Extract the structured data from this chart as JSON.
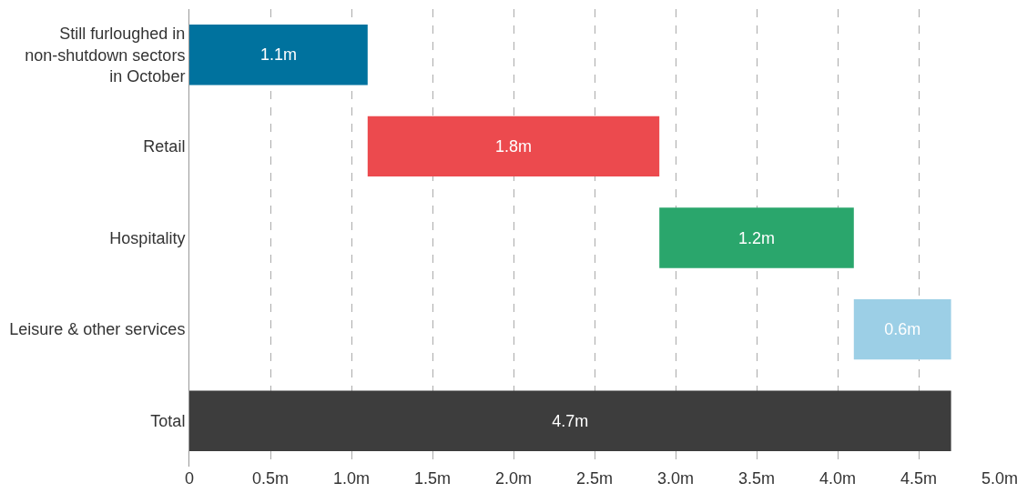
{
  "chart_data": {
    "type": "bar",
    "orientation": "horizontal",
    "categories": [
      "Still furloughed in non-shutdown sectors in October",
      "Retail",
      "Hospitality",
      "Leisure & other services",
      "Total"
    ],
    "values": [
      1.1,
      1.8,
      1.2,
      0.6,
      4.7
    ],
    "base": [
      0,
      1.1,
      2.9,
      4.1,
      0
    ],
    "colors": [
      "#00729e",
      "#ec4a4e",
      "#2aa66c",
      "#9ccfe6",
      "#3d3d3d"
    ],
    "value_labels": [
      "1.1m",
      "1.8m",
      "1.2m",
      "0.6m",
      "4.7m"
    ],
    "xlim": [
      0,
      5.0
    ],
    "xticks": [
      0,
      {
        "value": 0.5,
        "label": "0.5m"
      },
      {
        "value": 1.0,
        "label": "1.0m"
      },
      {
        "value": 1.5,
        "label": "1.5m"
      },
      {
        "value": 2.0,
        "label": "2.0m"
      },
      {
        "value": 2.5,
        "label": "2.5m"
      },
      {
        "value": 3.0,
        "label": "3.0m"
      },
      {
        "value": 3.5,
        "label": "3.5m"
      },
      {
        "value": 4.0,
        "label": "4.0m"
      },
      {
        "value": 4.5,
        "label": "4.5m"
      },
      {
        "value": 5.0,
        "label": "5.0m"
      }
    ],
    "grid": "x"
  }
}
